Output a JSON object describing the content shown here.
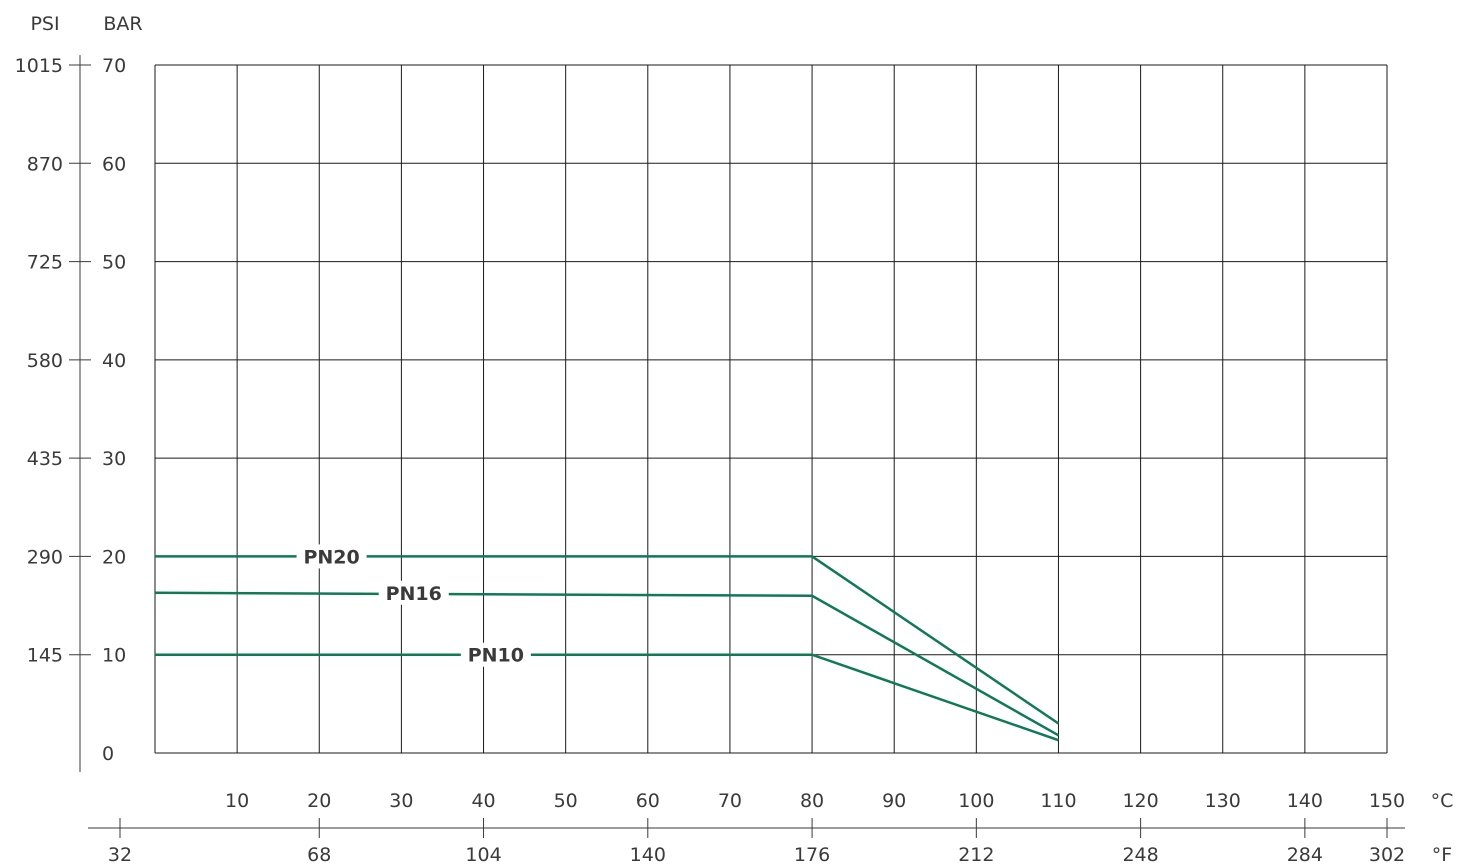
{
  "chart_data": {
    "type": "line",
    "axes": {
      "psi_label": "PSI",
      "bar_label": "BAR",
      "celsius_label": "°C",
      "fahrenheit_label": "°F"
    },
    "ylim_bar": [
      0,
      70
    ],
    "y_ticks_bar": [
      "0",
      "10",
      "20",
      "30",
      "40",
      "50",
      "60",
      "70"
    ],
    "y_ticks_psi": [
      {
        "bar": 10,
        "label": "145"
      },
      {
        "bar": 20,
        "label": "290"
      },
      {
        "bar": 30,
        "label": "435"
      },
      {
        "bar": 40,
        "label": "580"
      },
      {
        "bar": 50,
        "label": "725"
      },
      {
        "bar": 60,
        "label": "870"
      },
      {
        "bar": 70,
        "label": "1015"
      }
    ],
    "xlim_celsius": [
      0,
      150
    ],
    "x_ticks_celsius": [
      "10",
      "20",
      "30",
      "40",
      "50",
      "60",
      "70",
      "80",
      "90",
      "100",
      "110",
      "120",
      "130",
      "140",
      "150"
    ],
    "x_ticks_fahrenheit": [
      {
        "c": 0,
        "label": "32"
      },
      {
        "c": 20,
        "label": "68"
      },
      {
        "c": 40,
        "label": "104"
      },
      {
        "c": 60,
        "label": "140"
      },
      {
        "c": 80,
        "label": "176"
      },
      {
        "c": 100,
        "label": "212"
      },
      {
        "c": 120,
        "label": "248"
      },
      {
        "c": 140,
        "label": "284"
      },
      {
        "c": 150,
        "label": "302"
      }
    ],
    "grid": true,
    "series": [
      {
        "name": "PN20",
        "color": "#0f7a55",
        "label_at_c": 21.5,
        "points": [
          [
            0,
            20
          ],
          [
            80,
            20
          ],
          [
            110,
            3
          ]
        ]
      },
      {
        "name": "PN16",
        "color": "#0f7a55",
        "label_at_c": 31.5,
        "points": [
          [
            0,
            16.3
          ],
          [
            80,
            16
          ],
          [
            110,
            1.8
          ]
        ]
      },
      {
        "name": "PN10",
        "color": "#0f7a55",
        "label_at_c": 41.5,
        "points": [
          [
            0,
            10
          ],
          [
            80,
            10
          ],
          [
            110,
            1.3
          ]
        ]
      }
    ]
  }
}
